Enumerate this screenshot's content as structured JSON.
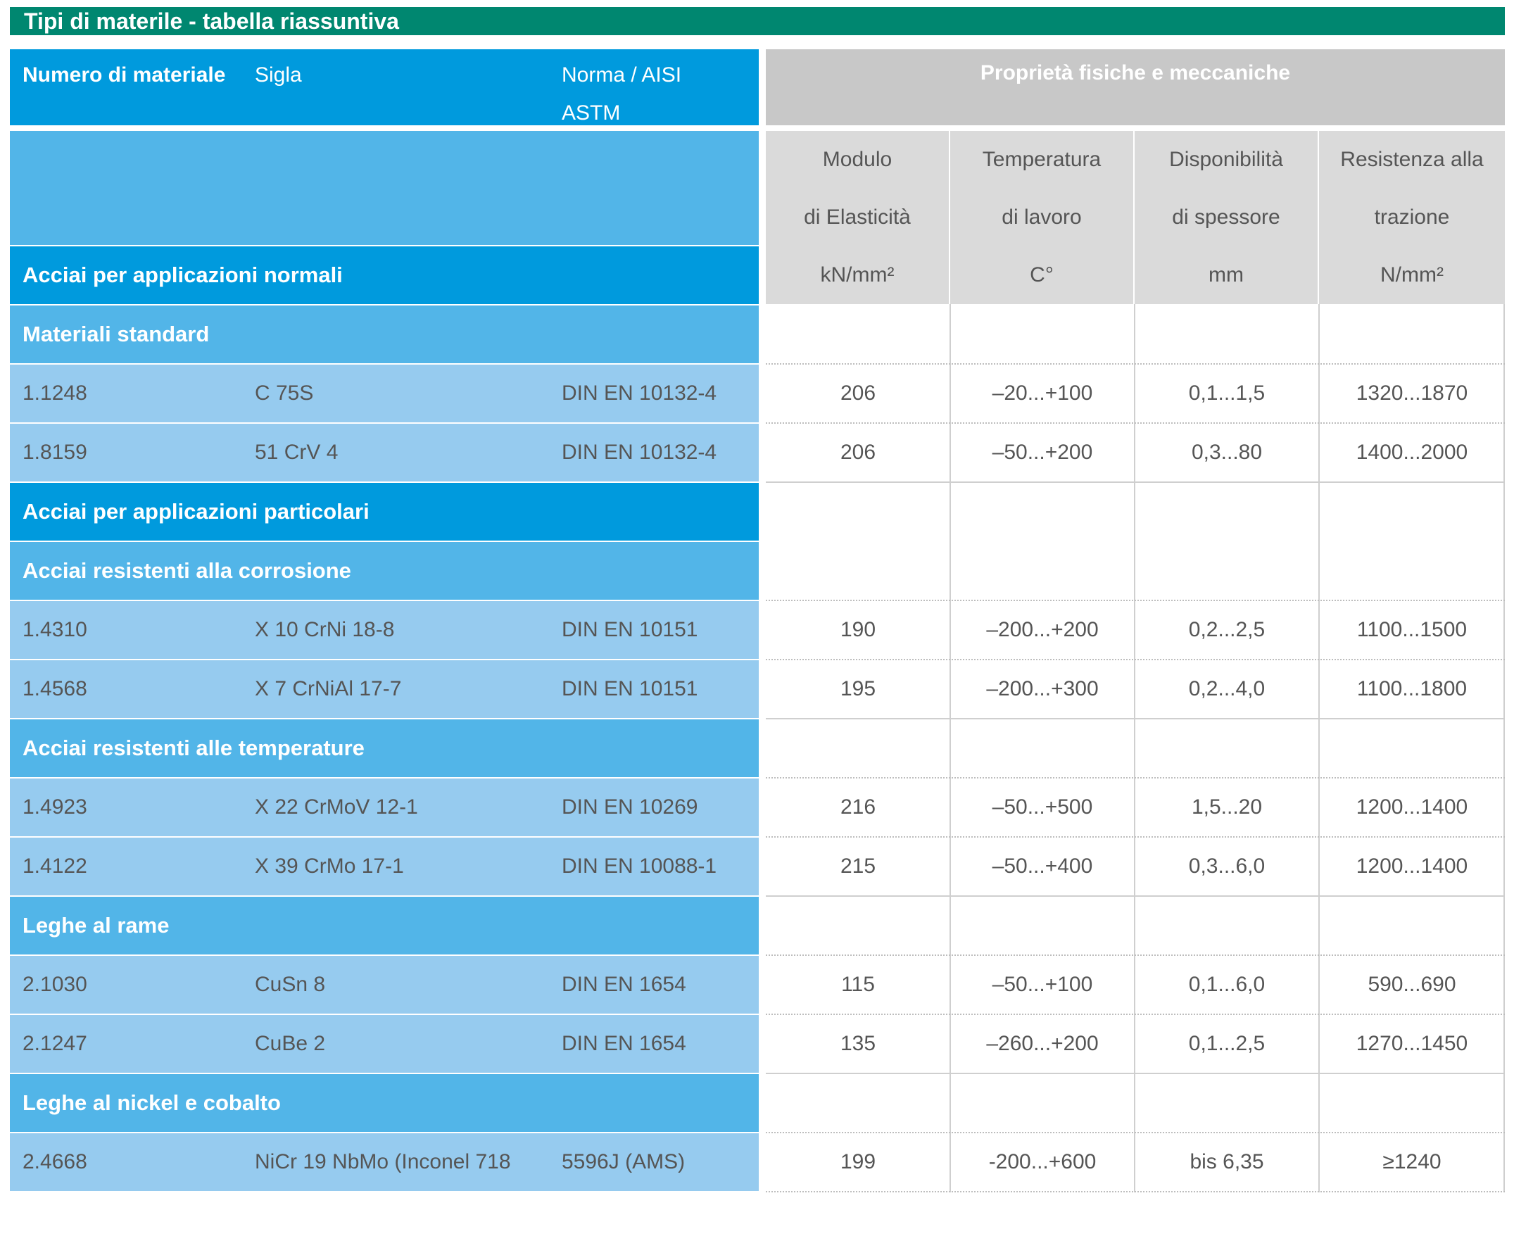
{
  "title": "Tipi di materile - tabella riassuntiva",
  "header": {
    "numero": "Numero di materiale",
    "sigla": "Sigla",
    "norma_line1": "Norma / AISI",
    "norma_line2": "ASTM",
    "proprieta": "Proprietà fisiche e meccaniche"
  },
  "columns": [
    {
      "line1": "Modulo",
      "line2": "di Elasticità",
      "unit": "kN/mm²"
    },
    {
      "line1": "Temperatura",
      "line2": "di lavoro",
      "unit": "C°"
    },
    {
      "line1": "Disponibilità",
      "line2": "di spessore",
      "unit": "mm"
    },
    {
      "line1": "Resistenza alla",
      "line2": "trazione",
      "unit": "N/mm²"
    }
  ],
  "sections": {
    "normali": "Acciai per applicazioni normali",
    "standard": "Materiali standard",
    "particolari": "Acciai per applicazioni particolari",
    "corrosione": "Acciai resistenti alla corrosione",
    "temperature": "Acciai resistenti alle temperature",
    "rame": "Leghe al rame",
    "nickel": "Leghe al nickel e cobalto"
  },
  "rows": [
    {
      "numero": "1.1248",
      "sigla": "C 75S",
      "norma": "DIN EN 10132-4",
      "modulo": "206",
      "temperatura": "–20...+100",
      "spessore": "0,1...1,5",
      "trazione": "1320...1870"
    },
    {
      "numero": "1.8159",
      "sigla": "51 CrV 4",
      "norma": "DIN EN 10132-4",
      "modulo": "206",
      "temperatura": "–50...+200",
      "spessore": "0,3...80",
      "trazione": "1400...2000"
    },
    {
      "numero": "1.4310",
      "sigla": "X 10 CrNi 18-8",
      "norma": "DIN EN 10151",
      "modulo": "190",
      "temperatura": "–200...+200",
      "spessore": "0,2...2,5",
      "trazione": "1100...1500"
    },
    {
      "numero": "1.4568",
      "sigla": "X 7 CrNiAl 17-7",
      "norma": "DIN EN 10151",
      "modulo": "195",
      "temperatura": "–200...+300",
      "spessore": "0,2...4,0",
      "trazione": "1100...1800"
    },
    {
      "numero": "1.4923",
      "sigla": "X 22 CrMoV 12-1",
      "norma": "DIN EN 10269",
      "modulo": "216",
      "temperatura": "–50...+500",
      "spessore": "1,5...20",
      "trazione": "1200...1400"
    },
    {
      "numero": "1.4122",
      "sigla": "X 39 CrMo 17-1",
      "norma": "DIN EN 10088-1",
      "modulo": "215",
      "temperatura": "–50...+400",
      "spessore": "0,3...6,0",
      "trazione": "1200...1400"
    },
    {
      "numero": "2.1030",
      "sigla": "CuSn 8",
      "norma": "DIN EN 1654",
      "modulo": "115",
      "temperatura": "–50...+100",
      "spessore": "0,1...6,0",
      "trazione": "590...690"
    },
    {
      "numero": "2.1247",
      "sigla": "CuBe 2",
      "norma": "DIN EN 1654",
      "modulo": "135",
      "temperatura": "–260...+200",
      "spessore": "0,1...2,5",
      "trazione": "1270...1450"
    },
    {
      "numero": "2.4668",
      "sigla": "NiCr 19 NbMo (Inconel 718",
      "norma": "5596J (AMS)",
      "modulo": "199",
      "temperatura": "-200...+600",
      "spessore": "bis 6,35",
      "trazione": "≥1240"
    }
  ],
  "colors": {
    "title_bar": "#008770",
    "header_blue": "#009ADD",
    "section_light": "#52B5E8",
    "data_row": "#96CBEF",
    "header_gray": "#C8C8C8",
    "subheader_gray": "#DADADA"
  }
}
